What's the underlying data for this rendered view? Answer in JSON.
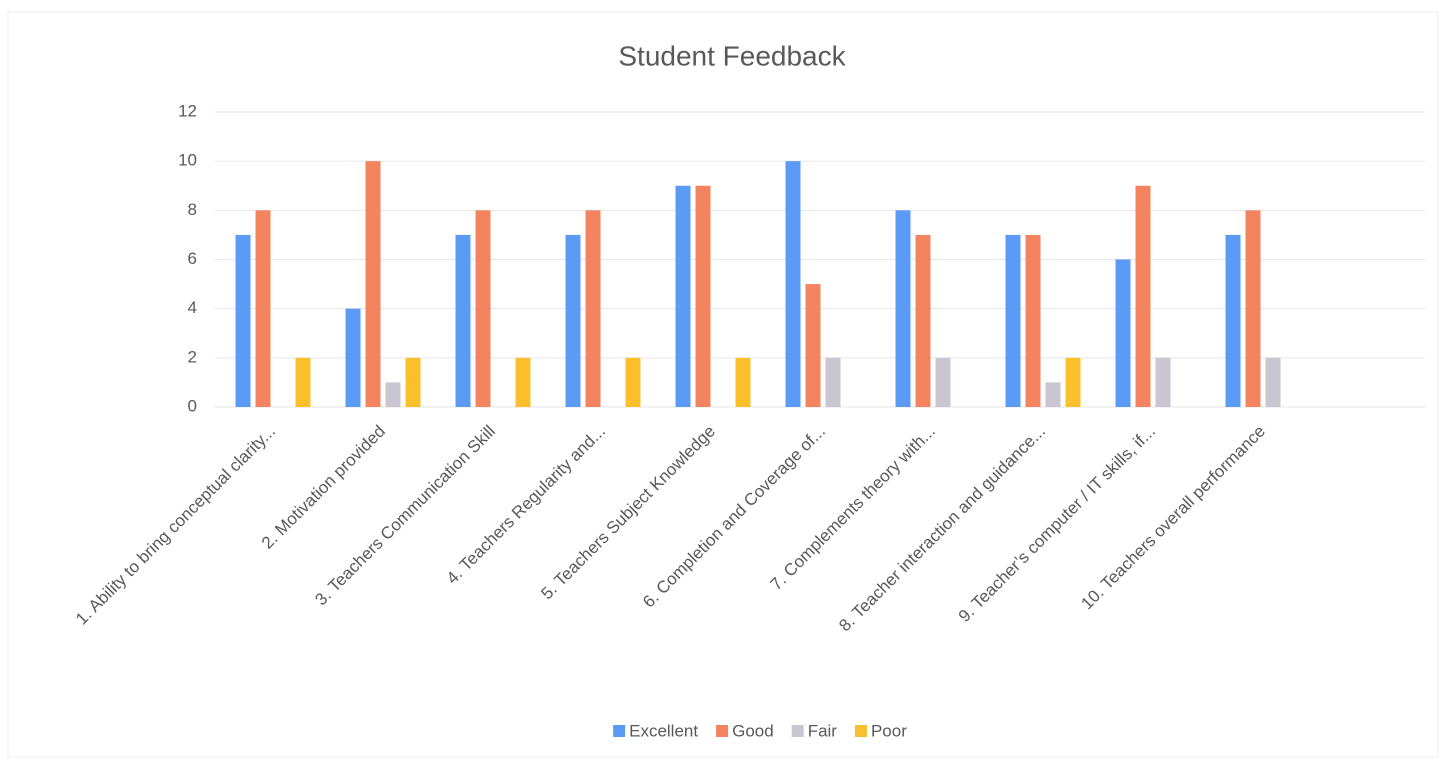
{
  "chart_data": {
    "type": "bar",
    "title": "Student Feedback",
    "categories": [
      "1. Ability to bring conceptual clarity...",
      "2. Motivation provided",
      "3. Teachers Communication Skill",
      "4. Teachers Regularity and...",
      "5. Teachers Subject Knowledge",
      "6. Completion and Coverage of...",
      "7. Complements theory with...",
      "8. Teacher interaction and guidance...",
      "9. Teacher’s computer / IT skills, if...",
      "10. Teachers overall performance",
      null
    ],
    "series": [
      {
        "name": "Excellent",
        "color": "#5b9bf5",
        "values": [
          7,
          4,
          7,
          7,
          9,
          10,
          8,
          7,
          6,
          7,
          null
        ]
      },
      {
        "name": "Good",
        "color": "#f4845f",
        "values": [
          8,
          10,
          8,
          8,
          9,
          5,
          7,
          7,
          9,
          8,
          null
        ]
      },
      {
        "name": "Fair",
        "color": "#c9c5d1",
        "values": [
          0,
          1,
          0,
          0,
          0,
          2,
          2,
          1,
          2,
          2,
          null
        ]
      },
      {
        "name": "Poor",
        "color": "#fbbf2b",
        "values": [
          2,
          2,
          2,
          2,
          2,
          0,
          0,
          2,
          0,
          0,
          null
        ]
      }
    ],
    "ylim": [
      0,
      12
    ],
    "yticks": [
      0,
      2,
      4,
      6,
      8,
      10,
      12
    ],
    "grid": true,
    "legend": "bottom"
  }
}
